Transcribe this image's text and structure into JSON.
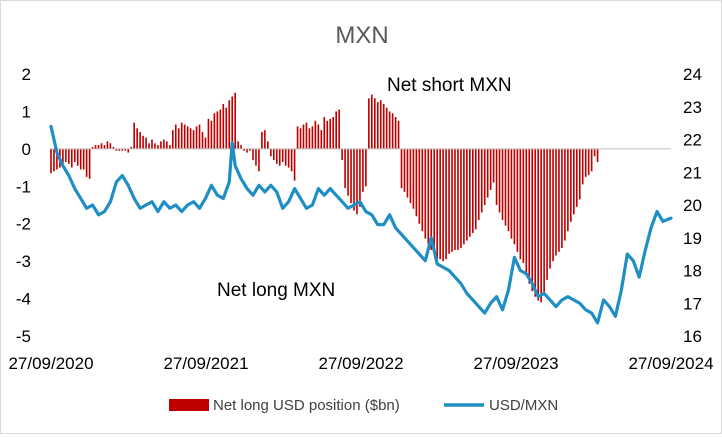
{
  "chart_data": {
    "type": "bar+line",
    "title": "MXN",
    "x_tick_labels": [
      "27/09/2020",
      "27/09/2021",
      "27/09/2022",
      "27/09/2023",
      "27/09/2024"
    ],
    "x_range": [
      "2020-09-27",
      "2024-09-27"
    ],
    "y_left": {
      "range": [
        -5,
        2
      ],
      "ticks": [
        "2",
        "1",
        "0",
        "-1",
        "-2",
        "-3",
        "-4",
        "-5"
      ]
    },
    "y_right": {
      "range": [
        16,
        24
      ],
      "ticks": [
        "24",
        "23",
        "22",
        "21",
        "20",
        "19",
        "18",
        "17",
        "16"
      ]
    },
    "annotations": {
      "short": "Net short MXN",
      "long": "Net long MXN"
    },
    "legend": {
      "position": "bottom",
      "bar": "Net long USD position ($bn)",
      "line": "USD/MXN"
    },
    "colors": {
      "bar": "#c00000",
      "line": "#1f8ec4",
      "title": "#595959"
    },
    "bar_series": {
      "name": "Net long USD position ($bn)",
      "x_start": "2020-09-27",
      "interval_days": 7,
      "values": [
        -0.65,
        -0.6,
        -0.55,
        -0.5,
        -0.45,
        -0.35,
        -0.4,
        -0.5,
        -0.35,
        -0.45,
        -0.55,
        -0.55,
        -0.75,
        -0.8,
        0.05,
        0.1,
        0.1,
        0.15,
        0.1,
        0.2,
        0.15,
        0.05,
        -0.05,
        -0.05,
        -0.05,
        -0.05,
        -0.1,
        0.05,
        0.7,
        0.55,
        0.45,
        0.35,
        0.3,
        0.15,
        0.25,
        0.15,
        0.1,
        0.2,
        0.25,
        0.2,
        0.1,
        0.5,
        0.65,
        0.55,
        0.7,
        0.65,
        0.6,
        0.55,
        0.5,
        0.6,
        0.65,
        0.45,
        0.3,
        0.8,
        0.75,
        0.95,
        1.0,
        1.05,
        1.2,
        1.1,
        1.3,
        1.4,
        1.5,
        0.2,
        0.1,
        -0.05,
        -0.1,
        -0.05,
        -0.3,
        -0.45,
        -0.6,
        0.45,
        0.5,
        0.2,
        -0.2,
        -0.3,
        -0.4,
        -0.45,
        -0.35,
        -0.45,
        -0.5,
        -0.6,
        -0.85,
        0.6,
        0.55,
        0.65,
        0.7,
        0.55,
        0.6,
        0.75,
        0.65,
        0.5,
        0.85,
        0.75,
        0.8,
        0.85,
        1.0,
        1.05,
        -0.3,
        -1.05,
        -1.25,
        -1.45,
        -1.65,
        -1.75,
        -1.55,
        -1.15,
        -1.0,
        1.35,
        1.45,
        1.35,
        1.25,
        1.3,
        1.2,
        1.1,
        1.0,
        0.95,
        0.85,
        0.75,
        -1.05,
        -1.15,
        -1.3,
        -1.45,
        -1.6,
        -1.8,
        -2.0,
        -2.2,
        -2.4,
        -2.55,
        -2.7,
        -2.8,
        -2.95,
        -2.95,
        -3.0,
        -2.95,
        -2.8,
        -2.75,
        -2.7,
        -2.7,
        -2.65,
        -2.55,
        -2.45,
        -2.35,
        -2.25,
        -2.15,
        -1.9,
        -1.7,
        -1.5,
        -1.3,
        -1.1,
        -0.9,
        -1.5,
        -1.7,
        -1.9,
        -2.05,
        -2.2,
        -2.4,
        -2.55,
        -2.75,
        -2.95,
        -3.05,
        -3.35,
        -3.6,
        -3.8,
        -3.95,
        -4.05,
        -4.1,
        -3.9,
        -3.5,
        -3.2,
        -3.0,
        -2.85,
        -2.75,
        -2.65,
        -2.45,
        -2.2,
        -1.95,
        -1.75,
        -1.55,
        -1.35,
        -0.95,
        -0.75,
        -0.7,
        -0.6,
        -0.2,
        -0.35
      ]
    },
    "line_series": {
      "name": "USD/MXN",
      "points": [
        [
          "2020-09-27",
          22.4
        ],
        [
          "2020-10-11",
          21.6
        ],
        [
          "2020-10-25",
          21.2
        ],
        [
          "2020-11-08",
          20.9
        ],
        [
          "2020-11-22",
          20.5
        ],
        [
          "2020-12-06",
          20.2
        ],
        [
          "2020-12-20",
          19.9
        ],
        [
          "2021-01-03",
          20.0
        ],
        [
          "2021-01-17",
          19.7
        ],
        [
          "2021-01-31",
          19.8
        ],
        [
          "2021-02-14",
          20.1
        ],
        [
          "2021-02-28",
          20.7
        ],
        [
          "2021-03-14",
          20.9
        ],
        [
          "2021-03-28",
          20.6
        ],
        [
          "2021-04-11",
          20.2
        ],
        [
          "2021-04-25",
          19.9
        ],
        [
          "2021-05-09",
          20.0
        ],
        [
          "2021-05-23",
          20.1
        ],
        [
          "2021-06-06",
          19.8
        ],
        [
          "2021-06-20",
          20.1
        ],
        [
          "2021-07-04",
          19.9
        ],
        [
          "2021-07-18",
          20.0
        ],
        [
          "2021-08-01",
          19.8
        ],
        [
          "2021-08-15",
          20.0
        ],
        [
          "2021-08-29",
          20.1
        ],
        [
          "2021-09-12",
          19.9
        ],
        [
          "2021-09-26",
          20.2
        ],
        [
          "2021-10-10",
          20.6
        ],
        [
          "2021-10-24",
          20.3
        ],
        [
          "2021-11-07",
          20.2
        ],
        [
          "2021-11-21",
          20.7
        ],
        [
          "2021-11-28",
          21.9
        ],
        [
          "2021-12-05",
          21.2
        ],
        [
          "2021-12-19",
          20.8
        ],
        [
          "2022-01-02",
          20.5
        ],
        [
          "2022-01-16",
          20.3
        ],
        [
          "2022-01-30",
          20.6
        ],
        [
          "2022-02-13",
          20.4
        ],
        [
          "2022-02-27",
          20.6
        ],
        [
          "2022-03-13",
          20.4
        ],
        [
          "2022-03-27",
          19.9
        ],
        [
          "2022-04-10",
          20.1
        ],
        [
          "2022-04-24",
          20.5
        ],
        [
          "2022-05-08",
          20.2
        ],
        [
          "2022-05-22",
          19.9
        ],
        [
          "2022-06-05",
          20.0
        ],
        [
          "2022-06-19",
          20.5
        ],
        [
          "2022-07-03",
          20.3
        ],
        [
          "2022-07-17",
          20.5
        ],
        [
          "2022-07-31",
          20.3
        ],
        [
          "2022-08-14",
          20.1
        ],
        [
          "2022-08-28",
          19.9
        ],
        [
          "2022-09-11",
          20.0
        ],
        [
          "2022-09-25",
          20.1
        ],
        [
          "2022-10-09",
          19.8
        ],
        [
          "2022-10-23",
          19.7
        ],
        [
          "2022-11-06",
          19.4
        ],
        [
          "2022-11-20",
          19.4
        ],
        [
          "2022-12-04",
          19.7
        ],
        [
          "2022-12-18",
          19.3
        ],
        [
          "2023-01-01",
          19.1
        ],
        [
          "2023-01-15",
          18.9
        ],
        [
          "2023-01-29",
          18.7
        ],
        [
          "2023-02-12",
          18.5
        ],
        [
          "2023-02-26",
          18.3
        ],
        [
          "2023-03-12",
          19.0
        ],
        [
          "2023-03-26",
          18.2
        ],
        [
          "2023-04-09",
          18.1
        ],
        [
          "2023-04-23",
          18.0
        ],
        [
          "2023-05-07",
          17.8
        ],
        [
          "2023-05-21",
          17.6
        ],
        [
          "2023-06-04",
          17.3
        ],
        [
          "2023-06-18",
          17.1
        ],
        [
          "2023-07-02",
          16.9
        ],
        [
          "2023-07-16",
          16.7
        ],
        [
          "2023-07-30",
          17.0
        ],
        [
          "2023-08-13",
          17.2
        ],
        [
          "2023-08-27",
          16.8
        ],
        [
          "2023-09-10",
          17.4
        ],
        [
          "2023-09-24",
          18.4
        ],
        [
          "2023-10-08",
          18.0
        ],
        [
          "2023-10-22",
          17.9
        ],
        [
          "2023-11-05",
          17.6
        ],
        [
          "2023-11-19",
          17.2
        ],
        [
          "2023-12-03",
          17.3
        ],
        [
          "2023-12-17",
          17.1
        ],
        [
          "2023-12-31",
          16.9
        ],
        [
          "2024-01-14",
          17.1
        ],
        [
          "2024-01-28",
          17.2
        ],
        [
          "2024-02-11",
          17.1
        ],
        [
          "2024-02-25",
          17.0
        ],
        [
          "2024-03-10",
          16.8
        ],
        [
          "2024-03-24",
          16.7
        ],
        [
          "2024-04-07",
          16.4
        ],
        [
          "2024-04-21",
          17.1
        ],
        [
          "2024-05-05",
          16.9
        ],
        [
          "2024-05-19",
          16.6
        ],
        [
          "2024-06-02",
          17.4
        ],
        [
          "2024-06-16",
          18.5
        ],
        [
          "2024-06-30",
          18.3
        ],
        [
          "2024-07-14",
          17.8
        ],
        [
          "2024-07-28",
          18.6
        ],
        [
          "2024-08-11",
          19.3
        ],
        [
          "2024-08-25",
          19.8
        ],
        [
          "2024-09-08",
          19.5
        ],
        [
          "2024-09-27",
          19.6
        ]
      ]
    }
  }
}
